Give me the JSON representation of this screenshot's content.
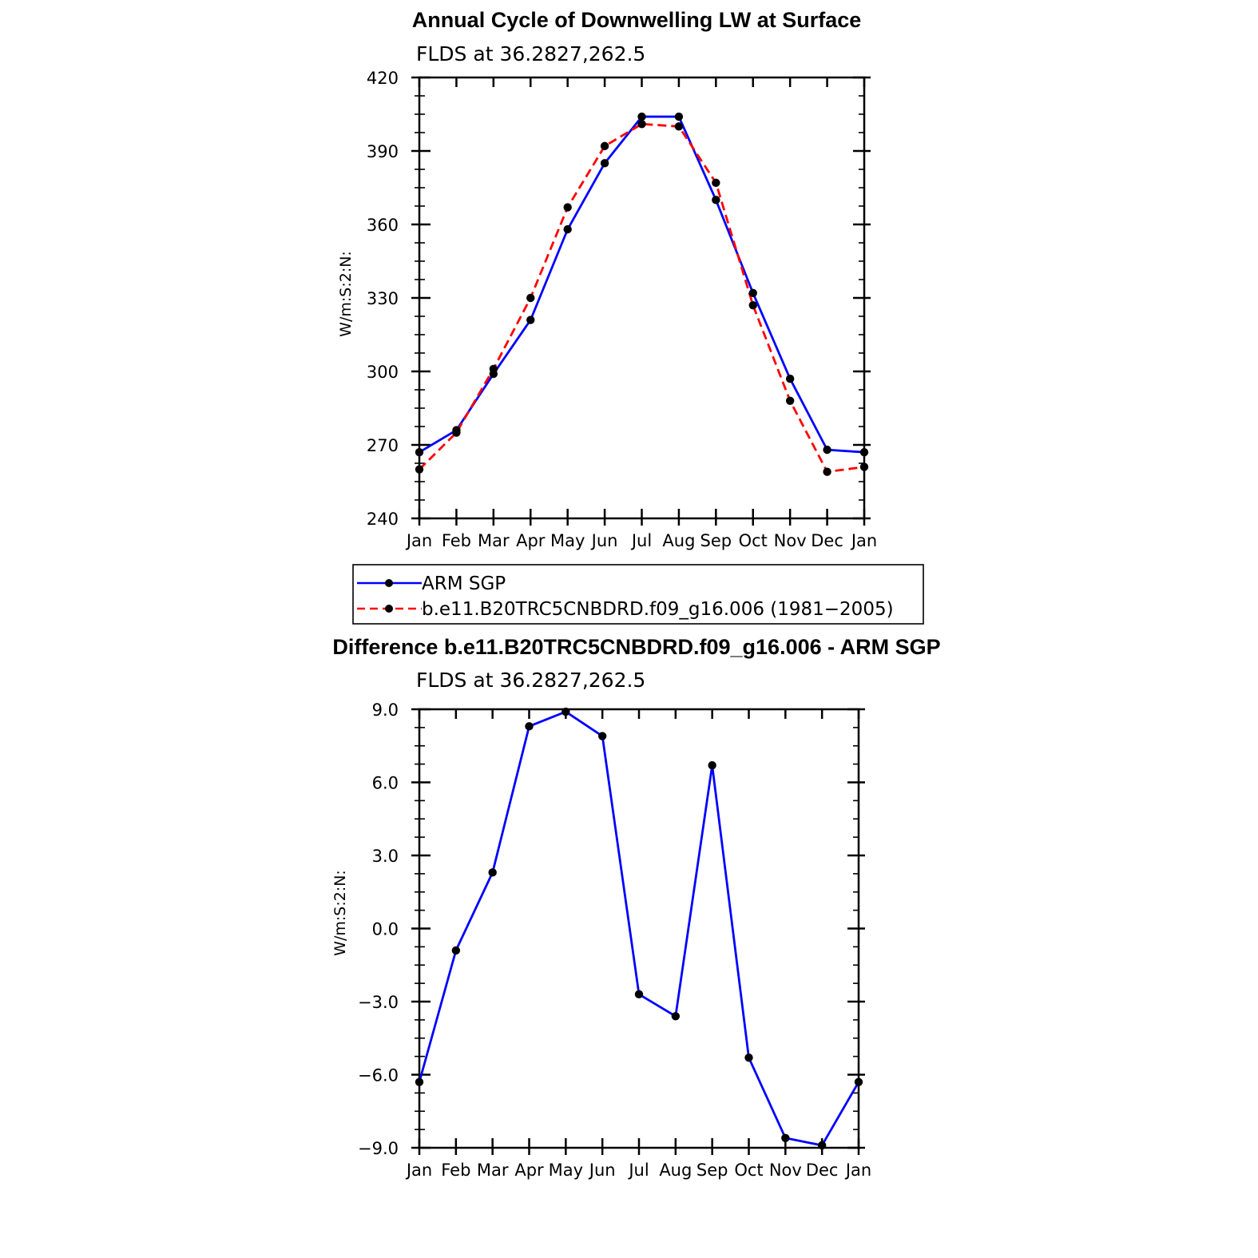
{
  "chart_data": [
    {
      "type": "line",
      "title": "Annual Cycle of Downwelling LW at Surface",
      "subtitle": "FLDS at 36.2827,262.5",
      "ylabel": "W/m:S:2:N:",
      "ylim": [
        240,
        420
      ],
      "yticks": [
        "240",
        "270",
        "300",
        "330",
        "360",
        "390",
        "420"
      ],
      "yticks_values": [
        240,
        270,
        300,
        330,
        360,
        390,
        420
      ],
      "categories": [
        "Jan",
        "Feb",
        "Mar",
        "Apr",
        "May",
        "Jun",
        "Jul",
        "Aug",
        "Sep",
        "Oct",
        "Nov",
        "Dec",
        "Jan"
      ],
      "grid": false,
      "legend_placement": "bottom",
      "series": [
        {
          "name": "ARM SGP",
          "color": "#0000ff",
          "dash": "solid",
          "values": [
            267,
            276,
            299,
            321,
            358,
            385,
            404,
            404,
            370,
            332,
            297,
            268,
            267
          ]
        },
        {
          "name": "b.e11.B20TRC5CNBDRD.f09_g16.006 (1981−2005)",
          "color": "#ff0000",
          "dash": "dashed",
          "values": [
            260,
            275,
            301,
            330,
            367,
            392,
            401,
            400,
            377,
            327,
            288,
            259,
            261
          ]
        }
      ]
    },
    {
      "type": "line",
      "title": "Difference b.e11.B20TRC5CNBDRD.f09_g16.006 - ARM SGP",
      "subtitle": "FLDS at 36.2827,262.5",
      "ylabel": "W/m:S:2:N:",
      "ylim": [
        -9,
        9
      ],
      "yticks": [
        "−9.0",
        "−6.0",
        "−3.0",
        "0.0",
        "3.0",
        "6.0",
        "9.0"
      ],
      "yticks_values": [
        -9,
        -6,
        -3,
        0,
        3,
        6,
        9
      ],
      "categories": [
        "Jan",
        "Feb",
        "Mar",
        "Apr",
        "May",
        "Jun",
        "Jul",
        "Aug",
        "Sep",
        "Oct",
        "Nov",
        "Dec",
        "Jan"
      ],
      "grid": false,
      "series": [
        {
          "color": "#0000ff",
          "dash": "solid",
          "values": [
            -6.3,
            -0.9,
            2.3,
            8.3,
            8.9,
            7.9,
            -2.7,
            -3.6,
            6.7,
            -5.3,
            -8.6,
            -8.9,
            -6.3
          ]
        }
      ]
    }
  ]
}
